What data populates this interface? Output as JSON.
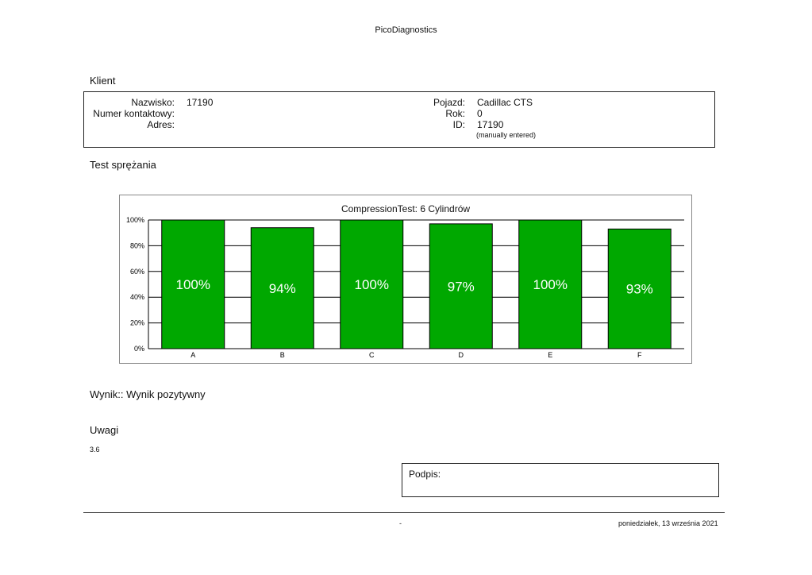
{
  "header": {
    "app_title": "PicoDiagnostics"
  },
  "client_section": {
    "title": "Klient",
    "fields": {
      "surname_label": "Nazwisko:",
      "surname_value": "17190",
      "phone_label": "Numer kontaktowy:",
      "phone_value": "",
      "address_label": "Adres:",
      "address_value": "",
      "vehicle_label": "Pojazd:",
      "vehicle_value": "Cadillac CTS",
      "year_label": "Rok:",
      "year_value": "0",
      "id_label": "ID:",
      "id_value": "17190",
      "id_note": "(manually entered)"
    }
  },
  "test_section": {
    "title": "Test sprężania"
  },
  "chart_data": {
    "type": "bar",
    "title": "CompressionTest: 6 Cylindrów",
    "categories": [
      "A",
      "B",
      "C",
      "D",
      "E",
      "F"
    ],
    "values": [
      100,
      94,
      100,
      97,
      100,
      93
    ],
    "value_labels": [
      "100%",
      "94%",
      "100%",
      "97%",
      "100%",
      "93%"
    ],
    "yticks": [
      "0%",
      "20%",
      "40%",
      "60%",
      "80%",
      "100%"
    ],
    "ylim": [
      0,
      100
    ],
    "grid": true,
    "bar_color": "#00a800"
  },
  "result": {
    "text": "Wynik:: Wynik pozytywny"
  },
  "notes": {
    "title": "Uwagi",
    "text": "3.6"
  },
  "signature": {
    "label": "Podpis:"
  },
  "footer": {
    "center": "-",
    "date": "poniedziałek, 13 września 2021"
  }
}
